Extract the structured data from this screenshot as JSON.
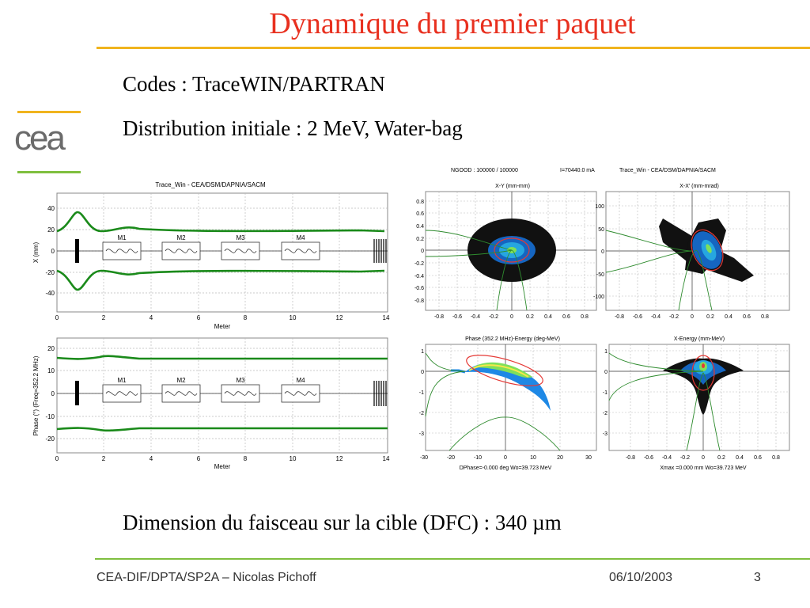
{
  "slide": {
    "title": "Dynamique du premier paquet",
    "line1": "Codes : TraceWIN/PARTRAN",
    "line2": "Distribution initiale : 2 MeV, Water-bag",
    "line3": "Dimension du faisceau sur la cible (DFC) : 340 µm",
    "logo": "cea",
    "footer_left": "CEA-DIF/DPTA/SP2A – Nicolas Pichoff",
    "footer_date": "06/10/2003",
    "page_number": "3",
    "colors": {
      "title": "#e8301f",
      "accent_yellow": "#f0b41e",
      "accent_green": "#7fbf3f",
      "envelope": "#1a8a1a"
    }
  },
  "envelope_plots": {
    "header": "Trace_Win - CEA/DSM/DAPNIA/SACM",
    "xlabel": "Meter",
    "element_labels": [
      "M1",
      "M2",
      "M3",
      "M4"
    ],
    "x_ticks": [
      "0",
      "2",
      "4",
      "6",
      "8",
      "10",
      "12",
      "14"
    ],
    "top": {
      "ylabel": "X (mm)",
      "y_ticks": [
        "40",
        "20",
        "0",
        "-20",
        "-40"
      ]
    },
    "bottom": {
      "ylabel": "Phase (°)   (Freq=352.2 MHz)",
      "y_ticks": [
        "20",
        "10",
        "0",
        "-10",
        "-20"
      ]
    }
  },
  "phase_space": {
    "header_left": "NGOOD : 100000 / 100000",
    "header_mid": "I=70440.0 mA",
    "header_right": "Trace_Win - CEA/DSM/DAPNIA/SACM",
    "xy": {
      "title": "X-Y (mm-mm)",
      "x_ticks": [
        "-0.8",
        "-0.6",
        "-0.4",
        "-0.2",
        "0",
        "0.2",
        "0.4",
        "0.6",
        "0.8"
      ],
      "y_ticks": [
        "0.8",
        "0.6",
        "0.4",
        "0.2",
        "0",
        "-0.2",
        "-0.4",
        "-0.6",
        "-0.8"
      ]
    },
    "xxp": {
      "title": "X-X' (mm-mrad)",
      "x_ticks": [
        "-0.8",
        "-0.6",
        "-0.4",
        "-0.2",
        "0",
        "0.2",
        "0.4",
        "0.6",
        "0.8"
      ],
      "y_ticks": [
        "100",
        "50",
        "0",
        "-50",
        "-100"
      ]
    },
    "pe": {
      "title": "Phase (352.2 MHz)-Energy (deg-MeV)",
      "x_ticks": [
        "-30",
        "-20",
        "-10",
        "0",
        "10",
        "20",
        "30"
      ],
      "y_ticks": [
        "1",
        "0",
        "-1",
        "-2",
        "-3"
      ],
      "footer": "DPhase=-0.000 deg  Wo=39.723 MeV"
    },
    "xe": {
      "title": "X-Energy (mm-MeV)",
      "x_ticks": [
        "-0.8",
        "-0.6",
        "-0.4",
        "-0.2",
        "0",
        "0.2",
        "0.4",
        "0.6",
        "0.8"
      ],
      "y_ticks": [
        "1",
        "0",
        "-1",
        "-2",
        "-3"
      ],
      "footer": "Xmax =0.000 mm  Wo=39.723 MeV"
    }
  }
}
